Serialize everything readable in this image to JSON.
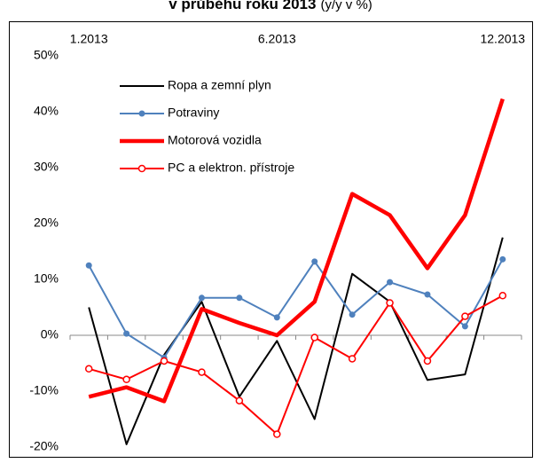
{
  "chart_data": {
    "type": "line",
    "title": "v průběhu roku 2013",
    "title_note": "(y/y v %)",
    "categories": [
      "1.2013",
      null,
      null,
      null,
      null,
      "6.2013",
      null,
      null,
      null,
      null,
      null,
      "12.2013"
    ],
    "series": [
      {
        "name": "Ropa a zemní plyn",
        "color": "#000000",
        "width": 2,
        "marker": "none",
        "values": [
          5,
          -19.5,
          -3.5,
          6,
          -11,
          -1,
          -15,
          11,
          6,
          -8,
          -7,
          17.5
        ]
      },
      {
        "name": "Potraviny",
        "color": "#4f81bd",
        "width": 2,
        "marker": "filled",
        "values": [
          12.5,
          0.3,
          -4,
          6.7,
          6.7,
          3.2,
          13.2,
          3.7,
          9.5,
          7.3,
          1.6,
          13.6
        ]
      },
      {
        "name": "Motorová vozidla",
        "color": "#ff0000",
        "width": 4.5,
        "marker": "none",
        "values": [
          -11,
          -9.3,
          -11.8,
          4.7,
          2.2,
          0,
          6,
          25.3,
          21.5,
          12,
          21.5,
          42.3
        ]
      },
      {
        "name": "PC a elektron. přístroje",
        "color": "#ff0000",
        "width": 2,
        "marker": "open",
        "values": [
          -6,
          -7.9,
          -4.6,
          -6.6,
          -11.7,
          -17.7,
          -0.4,
          -4.2,
          5.8,
          -4.6,
          3.4,
          7.1
        ]
      }
    ],
    "ylim": [
      -20,
      50
    ],
    "yticks": [
      {
        "value": -20,
        "label": "-20%"
      },
      {
        "value": -10,
        "label": "-10%"
      },
      {
        "value": 0,
        "label": "0%"
      },
      {
        "value": 10,
        "label": "10%"
      },
      {
        "value": 20,
        "label": "20%"
      },
      {
        "value": 30,
        "label": "30%"
      },
      {
        "value": 40,
        "label": "40%"
      },
      {
        "value": 50,
        "label": "50%"
      }
    ],
    "legend_position": "upper left",
    "grid": false
  }
}
